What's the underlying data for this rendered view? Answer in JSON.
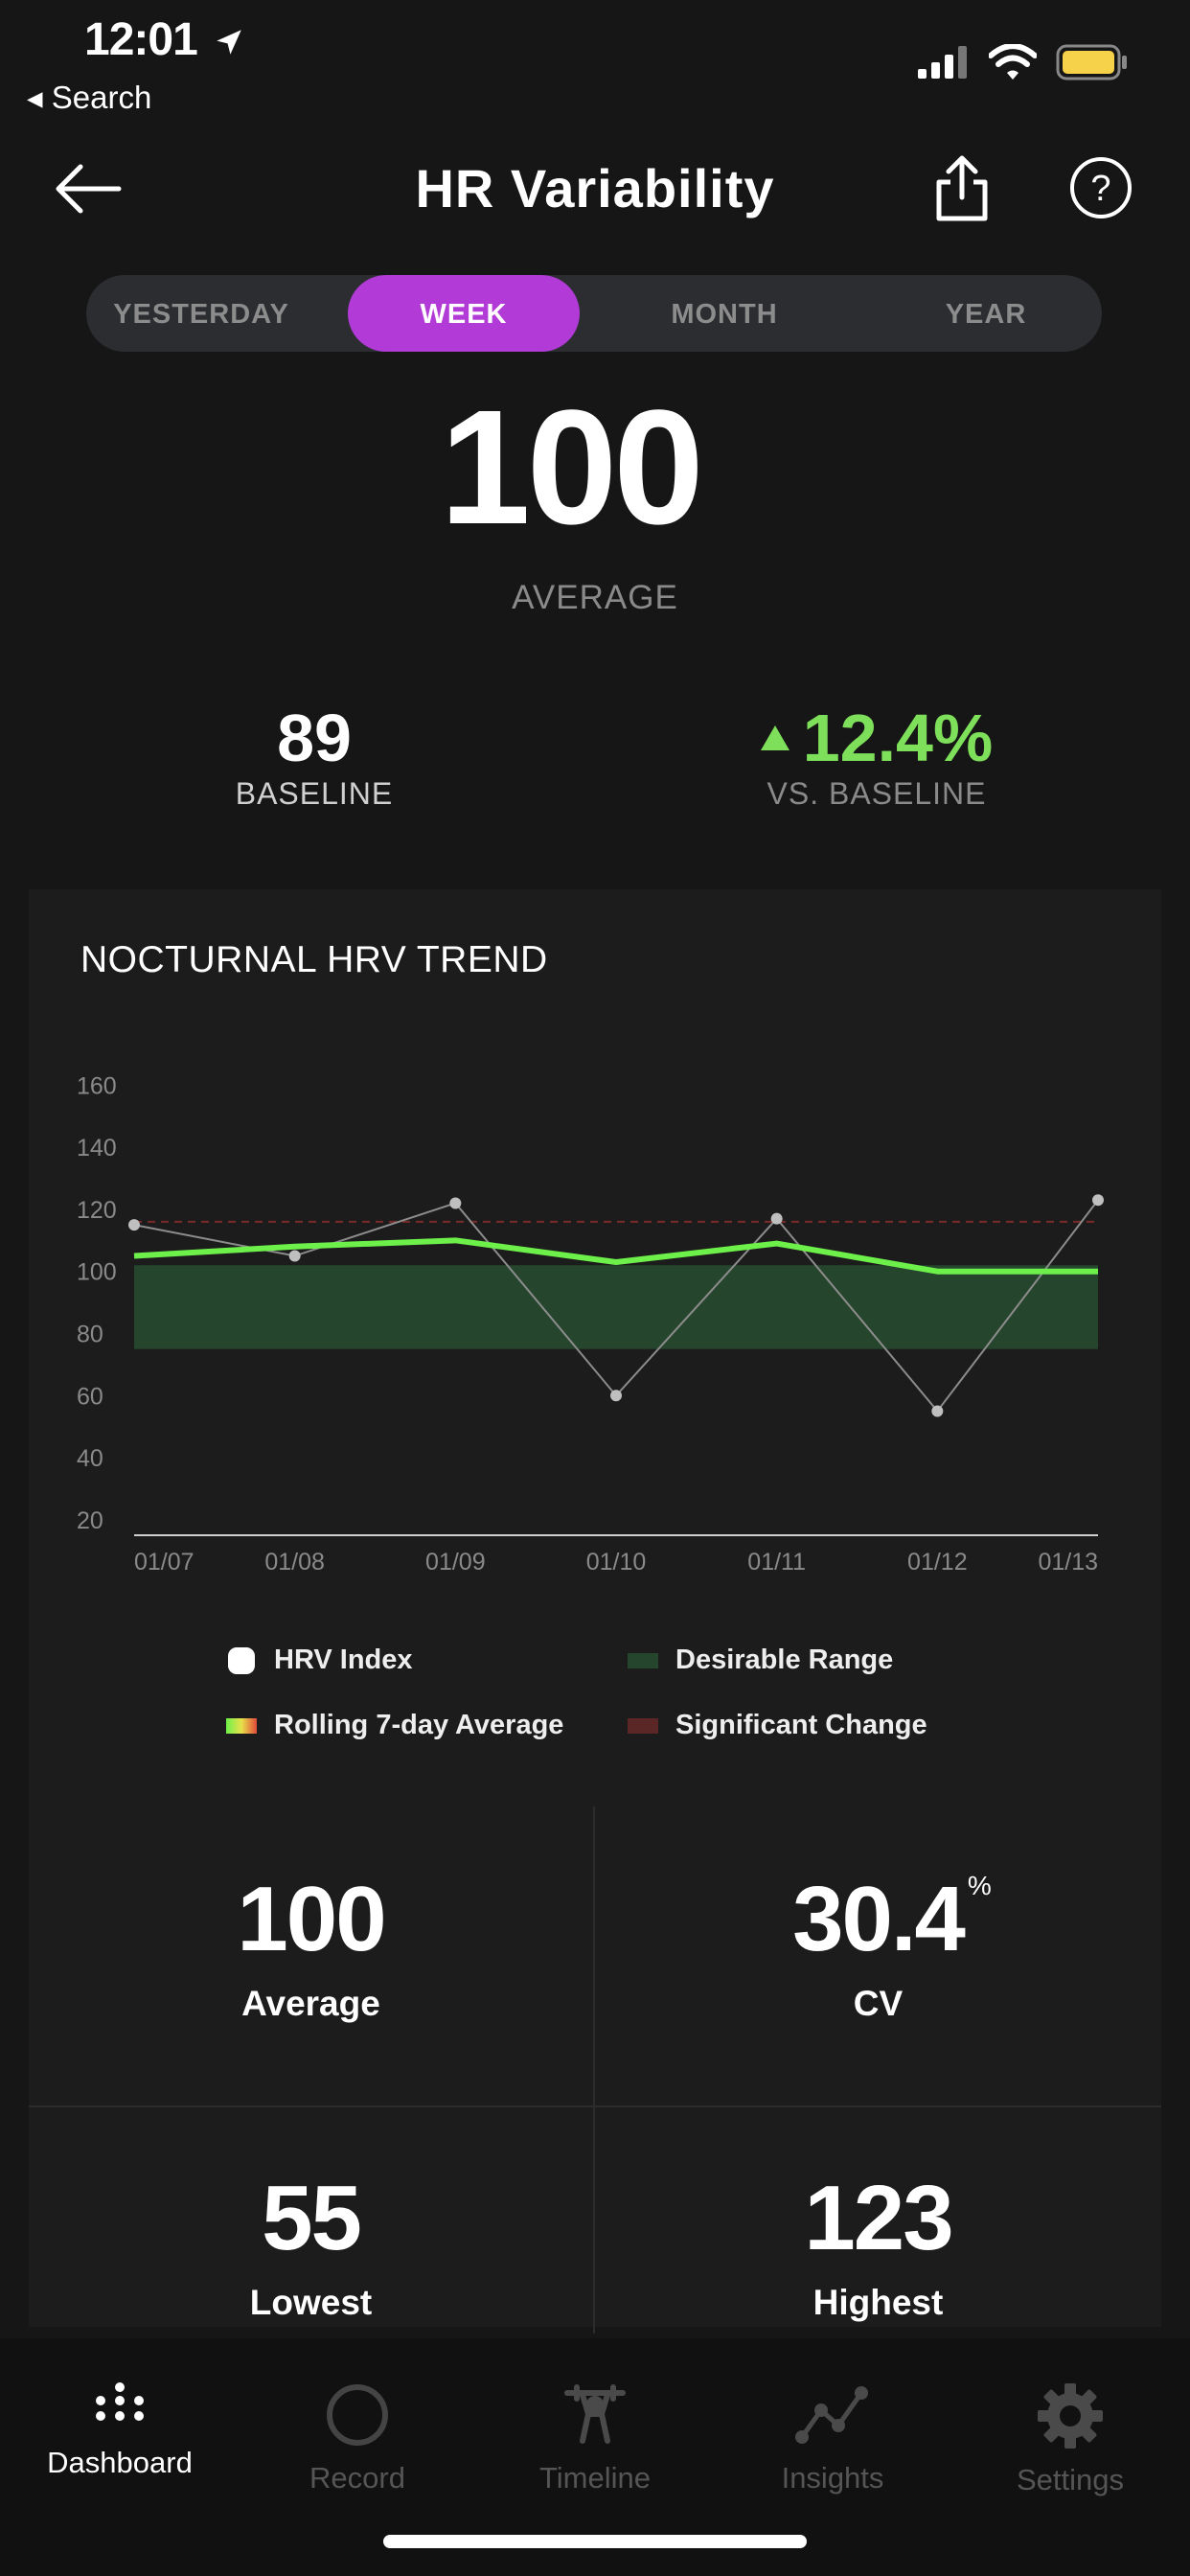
{
  "status": {
    "time": "12:01",
    "back_label": "◂ Search"
  },
  "header": {
    "title": "HR Variability"
  },
  "periods": [
    "YESTERDAY",
    "WEEK",
    "MONTH",
    "YEAR"
  ],
  "selected_period": "WEEK",
  "summary": {
    "average_value": "100",
    "average_label": "AVERAGE",
    "baseline_value": "89",
    "baseline_label": "BASELINE",
    "change_value": "12.4%",
    "change_label": "VS. BASELINE",
    "change_direction": "up",
    "change_color": "#7ee05a"
  },
  "chart_title": "NOCTURNAL HRV TREND",
  "chart_data": {
    "type": "line",
    "x": [
      "01/07",
      "01/08",
      "01/09",
      "01/10",
      "01/11",
      "01/12",
      "01/13"
    ],
    "yticks": [
      160,
      140,
      120,
      100,
      80,
      60,
      40,
      20
    ],
    "ylim": [
      15,
      170
    ],
    "series": [
      {
        "name": "HRV Index",
        "values": [
          115,
          105,
          122,
          60,
          117,
          55,
          123
        ],
        "color": "#bfbfbf"
      },
      {
        "name": "Rolling 7-day Average",
        "values": [
          105,
          108,
          110,
          103,
          109,
          100,
          100
        ],
        "color": "#6df04a"
      }
    ],
    "desirable_range": [
      75,
      102
    ],
    "significant_change": 116,
    "colors": {
      "range": "#25452d",
      "significant": "#7a2a2a"
    }
  },
  "legend": [
    {
      "label": "HRV Index",
      "icon": "white-dot-icon"
    },
    {
      "label": "Desirable Range",
      "icon": "green-swatch-icon"
    },
    {
      "label": "Rolling 7-day Average",
      "icon": "gradient-swatch-icon"
    },
    {
      "label": "Significant Change",
      "icon": "red-swatch-icon"
    }
  ],
  "metrics": {
    "average": {
      "value": "100",
      "label": "Average"
    },
    "cv": {
      "value": "30.4",
      "unit": "%",
      "label": "CV"
    },
    "lowest": {
      "value": "55",
      "label": "Lowest"
    },
    "highest": {
      "value": "123",
      "label": "Highest"
    }
  },
  "tabs": [
    {
      "label": "Dashboard",
      "icon": "dashboard-dots-icon",
      "active": true
    },
    {
      "label": "Record",
      "icon": "record-circle-icon",
      "active": false
    },
    {
      "label": "Timeline",
      "icon": "weightlifter-icon",
      "active": false
    },
    {
      "label": "Insights",
      "icon": "trend-line-icon",
      "active": false
    },
    {
      "label": "Settings",
      "icon": "gear-icon",
      "active": false
    }
  ],
  "accent_color": "#b23ad6"
}
